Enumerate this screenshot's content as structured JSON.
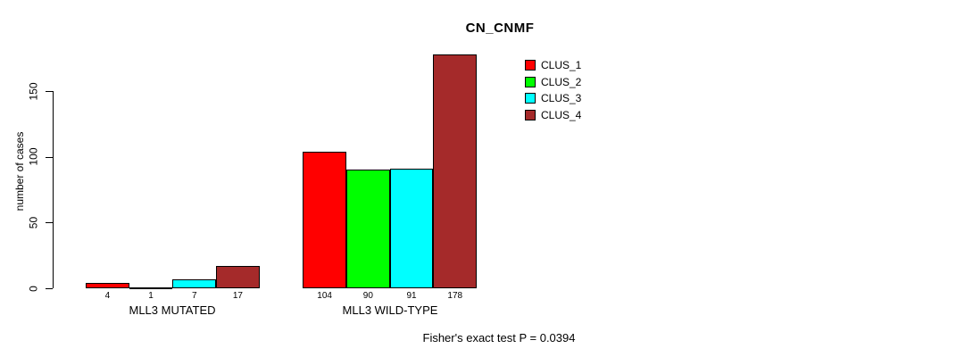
{
  "chart_data": {
    "type": "bar",
    "title": "CN_CNMF",
    "xlabel": "",
    "ylabel": "number of cases",
    "categories": [
      "MLL3 MUTATED",
      "MLL3 WILD-TYPE"
    ],
    "series": [
      {
        "name": "CLUS_1",
        "color": "#ff0000",
        "values": [
          4,
          104
        ]
      },
      {
        "name": "CLUS_2",
        "color": "#00ff00",
        "values": [
          1,
          90
        ]
      },
      {
        "name": "CLUS_3",
        "color": "#00ffff",
        "values": [
          7,
          91
        ]
      },
      {
        "name": "CLUS_4",
        "color": "#a52a2a",
        "values": [
          17,
          178
        ]
      }
    ],
    "yticks": [
      0,
      50,
      100,
      150
    ],
    "ylim": [
      0,
      178
    ],
    "grid": false,
    "bar_value_labels_shown": true,
    "legend_position": "top-right",
    "annotation": "Fisher's exact test P = 0.0394"
  },
  "colors": {
    "background": "#ffffff",
    "axis": "#000000",
    "clus_1": "#ff0000",
    "clus_2": "#00ff00",
    "clus_3": "#00ffff",
    "clus_4": "#a52a2a"
  }
}
